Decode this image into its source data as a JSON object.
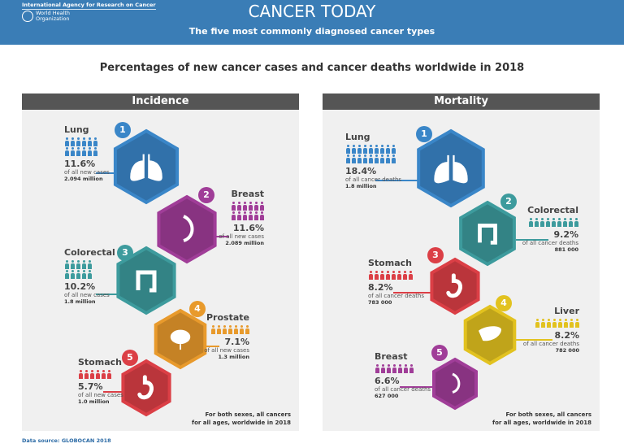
{
  "header": {
    "org_iarc": "International Agency for Research on Cancer",
    "org_who": "World Health\nOrganization",
    "title": "CANCER TODAY",
    "subtitle": "The five most commonly diagnosed cancer types",
    "color": "#3a7db6"
  },
  "heading": "Percentages of new cancer cases and cancer deaths worldwide in 2018",
  "incidence": {
    "title": "Incidence",
    "footnote": "For both sexes, all cancers\nfor all ages, worldwide in 2018",
    "items": [
      {
        "rank": "1",
        "name": "Lung",
        "pct": "11.6%",
        "desc": "of all new cases",
        "count": "2.094 million",
        "color": "#3a86c8",
        "icon": "lungs-icon",
        "icon_count": 12
      },
      {
        "rank": "2",
        "name": "Breast",
        "pct": "11.6%",
        "desc": "of all new cases",
        "count": "2.089 million",
        "color": "#a03d98",
        "icon": "breast-icon",
        "icon_count": 12
      },
      {
        "rank": "3",
        "name": "Colorectal",
        "pct": "10.2%",
        "desc": "of all new cases",
        "count": "1.8 million",
        "color": "#3d9b9d",
        "icon": "colon-icon",
        "icon_count": 10
      },
      {
        "rank": "4",
        "name": "Prostate",
        "pct": "7.1%",
        "desc": "of all new cases",
        "count": "1.3 million",
        "color": "#e89a2c",
        "icon": "prostate-icon",
        "icon_count": 7
      },
      {
        "rank": "5",
        "name": "Stomach",
        "pct": "5.7%",
        "desc": "of all new cases",
        "count": "1.0 million",
        "color": "#db3f46",
        "icon": "stomach-icon",
        "icon_count": 6
      }
    ]
  },
  "mortality": {
    "title": "Mortality",
    "footnote": "For both sexes, all cancers\nfor all ages, worldwide in 2018",
    "items": [
      {
        "rank": "1",
        "name": "Lung",
        "pct": "18.4%",
        "desc": "of all cancer deaths",
        "count": "1.8 million",
        "color": "#3a86c8",
        "icon": "lungs-icon",
        "icon_count": 18
      },
      {
        "rank": "2",
        "name": "Colorectal",
        "pct": "9.2%",
        "desc": "of all cancer deaths",
        "count": "881 000",
        "color": "#3d9b9d",
        "icon": "colon-icon",
        "icon_count": 9
      },
      {
        "rank": "3",
        "name": "Stomach",
        "pct": "8.2%",
        "desc": "of all cancer deaths",
        "count": "783 000",
        "color": "#db3f46",
        "icon": "stomach-icon",
        "icon_count": 8
      },
      {
        "rank": "4",
        "name": "Liver",
        "pct": "8.2%",
        "desc": "of all cancer deaths",
        "count": "782 000",
        "color": "#e2c21f",
        "icon": "liver-icon",
        "icon_count": 8
      },
      {
        "rank": "5",
        "name": "Breast",
        "pct": "6.6%",
        "desc": "of all cancer deaths",
        "count": "627 000",
        "color": "#a03d98",
        "icon": "breast-icon",
        "icon_count": 7
      }
    ]
  },
  "source": "Data source: GLOBOCAN 2018"
}
